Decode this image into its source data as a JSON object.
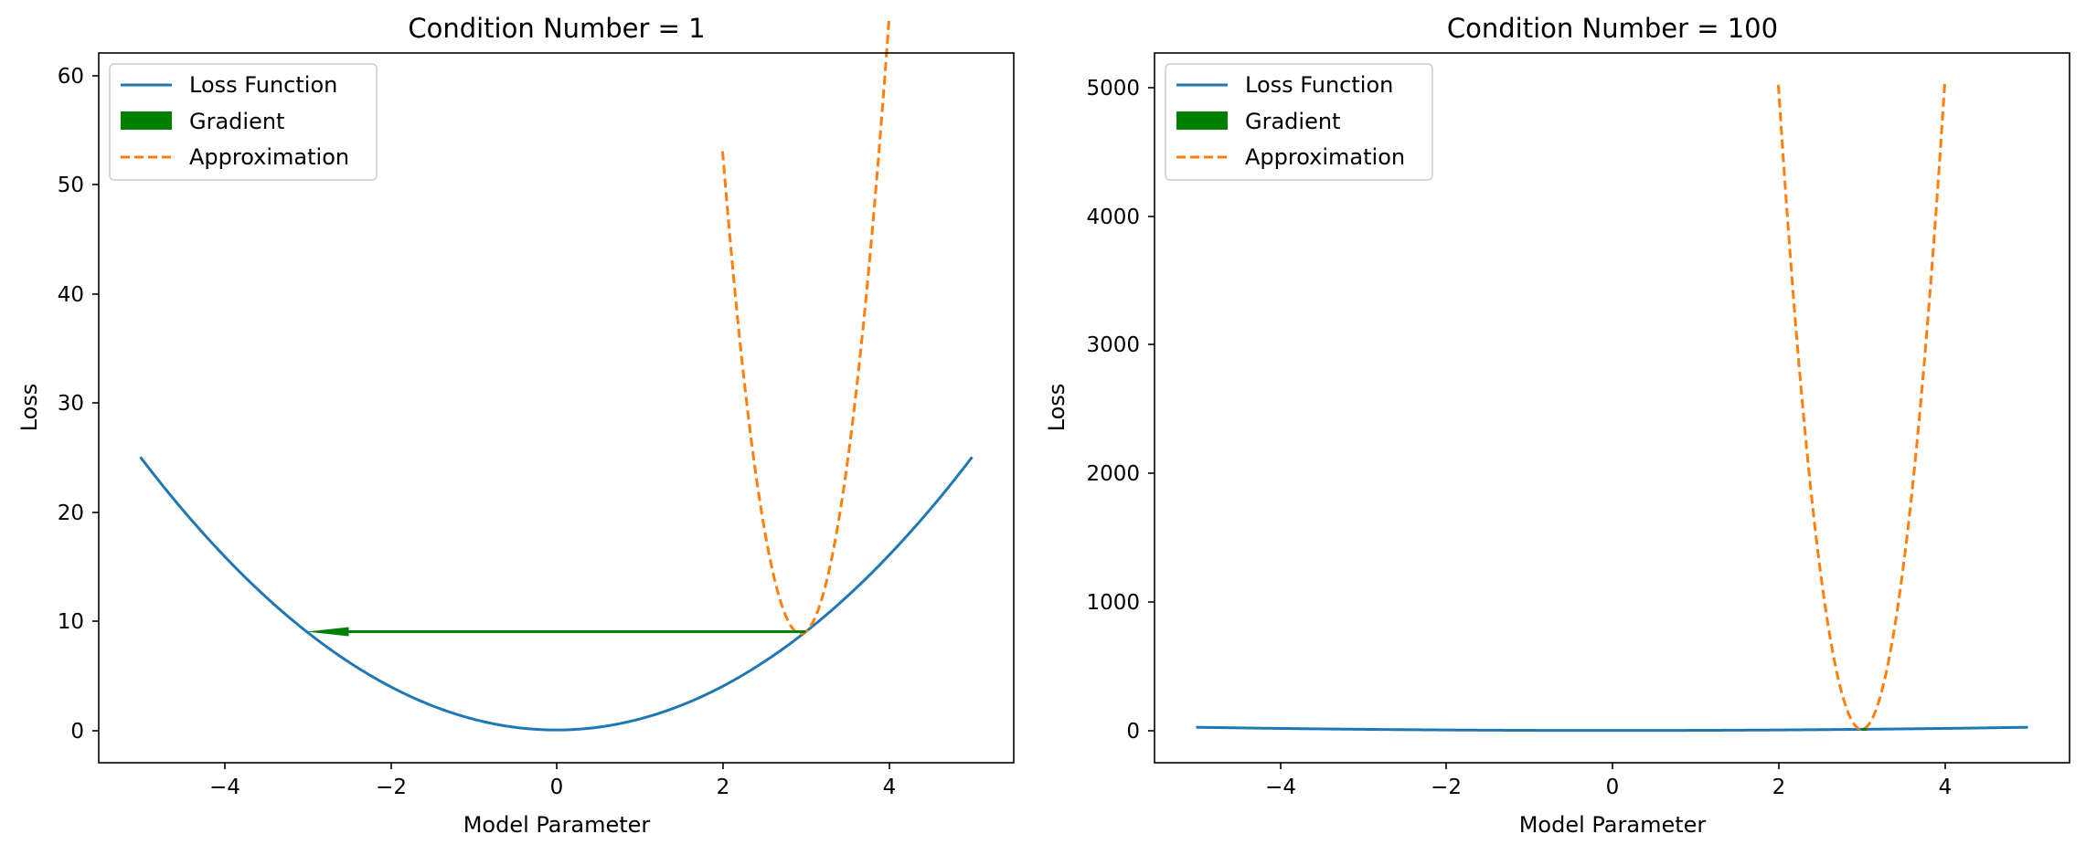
{
  "chart_data": [
    {
      "type": "line",
      "title": "Condition Number = 1",
      "xlabel": "Model Parameter",
      "ylabel": "Loss",
      "xlim": [
        -5.5,
        5.5
      ],
      "ylim": [
        -3,
        62
      ],
      "xticks": [
        -4,
        -2,
        0,
        2,
        4
      ],
      "yticks": [
        0,
        10,
        20,
        30,
        40,
        50,
        60
      ],
      "grid": false,
      "legend": {
        "placement": "top-left",
        "entries": [
          "Loss Function",
          "Gradient",
          "Approximation"
        ]
      },
      "series": [
        {
          "name": "Loss Function",
          "function": "x^2",
          "x_range": [
            -5,
            5
          ],
          "color": "#1f77b4",
          "style": "solid"
        },
        {
          "name": "Approximation",
          "function": "9 + 6(x-3) + 50(x-3)^2",
          "x_range": [
            2,
            4
          ],
          "color": "#ff7f0e",
          "style": "dashed"
        }
      ],
      "gradient_arrow": {
        "name": "Gradient",
        "from": [
          3,
          9
        ],
        "to": [
          -3,
          9
        ],
        "color": "#008000"
      }
    },
    {
      "type": "line",
      "title": "Condition Number = 100",
      "xlabel": "Model Parameter",
      "ylabel": "Loss",
      "xlim": [
        -5.5,
        5.5
      ],
      "ylim": [
        -250,
        5250
      ],
      "xticks": [
        -4,
        -2,
        0,
        2,
        4
      ],
      "yticks": [
        0,
        1000,
        2000,
        3000,
        4000,
        5000
      ],
      "grid": false,
      "legend": {
        "placement": "top-left",
        "entries": [
          "Loss Function",
          "Gradient",
          "Approximation"
        ]
      },
      "series": [
        {
          "name": "Loss Function",
          "function": "x^2",
          "x_range": [
            -5,
            5
          ],
          "color": "#1f77b4",
          "style": "solid"
        },
        {
          "name": "Approximation",
          "function": "9 + 6(x-3) + 5000(x-3)^2",
          "x_range": [
            2,
            4
          ],
          "color": "#ff7f0e",
          "style": "dashed"
        }
      ],
      "gradient_arrow": {
        "name": "Gradient",
        "from": [
          3,
          9
        ],
        "to": [
          3.06,
          9
        ],
        "color": "#008000"
      }
    }
  ]
}
